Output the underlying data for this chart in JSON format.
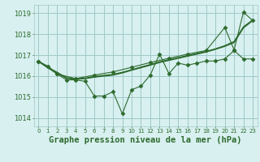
{
  "background_color": "#d8f0f0",
  "grid_color": "#a0c8c8",
  "line_color": "#2d6a2d",
  "title": "Graphe pression niveau de la mer (hPa)",
  "title_fontsize": 7.5,
  "ylabel_ticks": [
    1014,
    1015,
    1016,
    1017,
    1018,
    1019
  ],
  "xlim": [
    -0.5,
    23.5
  ],
  "ylim": [
    1013.6,
    1019.4
  ],
  "xticks": [
    0,
    1,
    2,
    3,
    4,
    5,
    6,
    7,
    8,
    9,
    10,
    11,
    12,
    13,
    14,
    15,
    16,
    17,
    18,
    19,
    20,
    21,
    22,
    23
  ],
  "series": {
    "line1_smooth_lower": {
      "x": [
        0,
        1,
        2,
        3,
        4,
        5,
        6,
        7,
        8,
        9,
        10,
        11,
        12,
        13,
        14,
        15,
        16,
        17,
        18,
        19,
        20,
        21,
        22,
        23
      ],
      "y": [
        1016.7,
        1016.4,
        1016.15,
        1015.9,
        1015.85,
        1015.88,
        1015.95,
        1016.0,
        1016.05,
        1016.15,
        1016.28,
        1016.4,
        1016.52,
        1016.65,
        1016.75,
        1016.85,
        1016.95,
        1017.05,
        1017.15,
        1017.28,
        1017.42,
        1017.6,
        1018.3,
        1018.65
      ],
      "marker": null,
      "markersize": 0,
      "linewidth": 1.0
    },
    "line2_smooth_upper": {
      "x": [
        0,
        1,
        2,
        3,
        4,
        5,
        6,
        7,
        8,
        9,
        10,
        11,
        12,
        13,
        14,
        15,
        16,
        17,
        18,
        19,
        20,
        21,
        22,
        23
      ],
      "y": [
        1016.72,
        1016.42,
        1016.18,
        1015.92,
        1015.87,
        1015.9,
        1015.98,
        1016.03,
        1016.08,
        1016.18,
        1016.3,
        1016.43,
        1016.55,
        1016.68,
        1016.78,
        1016.88,
        1016.98,
        1017.08,
        1017.18,
        1017.3,
        1017.45,
        1017.65,
        1018.35,
        1018.68
      ],
      "marker": null,
      "markersize": 0,
      "linewidth": 1.0
    },
    "line3_jagged": {
      "x": [
        0,
        1,
        2,
        3,
        4,
        5,
        6,
        7,
        8,
        9,
        10,
        11,
        12,
        13,
        14,
        15,
        16,
        17,
        18,
        19,
        20,
        21,
        22,
        23
      ],
      "y": [
        1016.7,
        1016.48,
        1016.1,
        1015.82,
        1015.82,
        1015.75,
        1015.05,
        1015.05,
        1015.25,
        1014.2,
        1015.35,
        1015.52,
        1016.05,
        1017.05,
        1016.12,
        1016.62,
        1016.52,
        1016.62,
        1016.72,
        1016.72,
        1016.82,
        1017.22,
        1016.82,
        1016.82
      ],
      "marker": "D",
      "markersize": 2.5,
      "linewidth": 0.8
    },
    "line4_rising": {
      "x": [
        0,
        2,
        4,
        6,
        8,
        10,
        12,
        14,
        16,
        18,
        20,
        21,
        22,
        23
      ],
      "y": [
        1016.7,
        1016.1,
        1015.88,
        1016.05,
        1016.2,
        1016.42,
        1016.65,
        1016.85,
        1017.05,
        1017.22,
        1018.32,
        1017.25,
        1019.05,
        1018.65
      ],
      "marker": "D",
      "markersize": 2.5,
      "linewidth": 0.8
    }
  }
}
